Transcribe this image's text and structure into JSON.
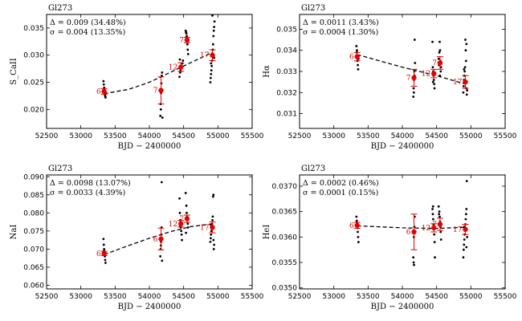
{
  "chart_data": [
    {
      "type": "scatter",
      "title": "Gl273",
      "ylabel": "S_CaII",
      "xlabel": "BJD − 2400000",
      "xlim": [
        52500,
        55500
      ],
      "ylim": [
        0.0165,
        0.0375
      ],
      "xticks": [
        52500,
        53000,
        53500,
        54000,
        54500,
        55000,
        55500
      ],
      "yticks": [
        0.02,
        0.025,
        0.03,
        0.035
      ],
      "ytick_labels": [
        "0.020",
        "0.025",
        "0.030",
        "0.035"
      ],
      "annotation": [
        "Δ = 0.009 (34.48%)",
        "σ = 0.004 (13.35%)"
      ],
      "raw_points": [
        [
          53330,
          0.0252
        ],
        [
          53335,
          0.0246
        ],
        [
          53340,
          0.024
        ],
        [
          53345,
          0.0232
        ],
        [
          53350,
          0.0228
        ],
        [
          53355,
          0.0225
        ],
        [
          53360,
          0.0222
        ],
        [
          53338,
          0.0236
        ],
        [
          54160,
          0.0188
        ],
        [
          54165,
          0.021
        ],
        [
          54170,
          0.023
        ],
        [
          54175,
          0.0248
        ],
        [
          54180,
          0.0262
        ],
        [
          54185,
          0.0268
        ],
        [
          54190,
          0.0185
        ],
        [
          54168,
          0.02
        ],
        [
          54440,
          0.026
        ],
        [
          54450,
          0.0268
        ],
        [
          54455,
          0.0272
        ],
        [
          54460,
          0.0276
        ],
        [
          54470,
          0.028
        ],
        [
          54480,
          0.0285
        ],
        [
          54490,
          0.029
        ],
        [
          54445,
          0.0292
        ],
        [
          54530,
          0.0345
        ],
        [
          54540,
          0.034
        ],
        [
          54545,
          0.0335
        ],
        [
          54550,
          0.0328
        ],
        [
          54555,
          0.032
        ],
        [
          54560,
          0.031
        ],
        [
          54565,
          0.0302
        ],
        [
          54535,
          0.0342
        ],
        [
          54548,
          0.0332
        ],
        [
          54558,
          0.0325
        ],
        [
          54890,
          0.025
        ],
        [
          54895,
          0.0258
        ],
        [
          54900,
          0.0265
        ],
        [
          54905,
          0.0272
        ],
        [
          54910,
          0.028
        ],
        [
          54915,
          0.029
        ],
        [
          54920,
          0.03
        ],
        [
          54925,
          0.031
        ],
        [
          54930,
          0.032
        ],
        [
          54935,
          0.0335
        ],
        [
          54940,
          0.0345
        ],
        [
          54945,
          0.0352
        ],
        [
          54950,
          0.0362
        ],
        [
          54920,
          0.0373
        ],
        [
          54900,
          0.0285
        ],
        [
          54945,
          0.0295
        ]
      ],
      "means": [
        {
          "x": 53340,
          "y": 0.0233,
          "err": 0.0005,
          "n": "6"
        },
        {
          "x": 54170,
          "y": 0.0235,
          "err": 0.0025,
          "n": "7"
        },
        {
          "x": 54460,
          "y": 0.0278,
          "err": 0.0008,
          "n": "12"
        },
        {
          "x": 54550,
          "y": 0.0328,
          "err": 0.0005,
          "n": "7"
        },
        {
          "x": 54920,
          "y": 0.03,
          "err": 0.001,
          "n": "17"
        }
      ],
      "fit": [
        [
          53340,
          0.0229
        ],
        [
          53700,
          0.0237
        ],
        [
          54000,
          0.025
        ],
        [
          54300,
          0.0268
        ],
        [
          54600,
          0.0286
        ],
        [
          54920,
          0.0305
        ]
      ]
    },
    {
      "type": "scatter",
      "title": "Gl273",
      "ylabel": "Hα",
      "xlabel": "BJD − 2400000",
      "xlim": [
        52500,
        55500
      ],
      "ylim": [
        0.0303,
        0.0357
      ],
      "xticks": [
        52500,
        53000,
        53500,
        54000,
        54500,
        55000,
        55500
      ],
      "yticks": [
        0.031,
        0.032,
        0.033,
        0.034,
        0.035
      ],
      "ytick_labels": [
        "0.031",
        "0.032",
        "0.033",
        "0.034",
        "0.035"
      ],
      "annotation": [
        "Δ = 0.0011 (3.43%)",
        "σ = 0.0004 (1.30%)"
      ],
      "raw_points": [
        [
          53330,
          0.0342
        ],
        [
          53335,
          0.0339
        ],
        [
          53340,
          0.0337
        ],
        [
          53345,
          0.0335
        ],
        [
          53350,
          0.0333
        ],
        [
          53355,
          0.0331
        ],
        [
          53360,
          0.0336
        ],
        [
          53338,
          0.034
        ],
        [
          54160,
          0.0318
        ],
        [
          54165,
          0.0322
        ],
        [
          54170,
          0.0326
        ],
        [
          54175,
          0.033
        ],
        [
          54180,
          0.0345
        ],
        [
          54185,
          0.0334
        ],
        [
          54168,
          0.032
        ],
        [
          54178,
          0.0328
        ],
        [
          54440,
          0.0344
        ],
        [
          54445,
          0.0332
        ],
        [
          54450,
          0.033
        ],
        [
          54455,
          0.0328
        ],
        [
          54460,
          0.0326
        ],
        [
          54465,
          0.0324
        ],
        [
          54470,
          0.0322
        ],
        [
          54475,
          0.0329
        ],
        [
          54448,
          0.0325
        ],
        [
          54530,
          0.0336
        ],
        [
          54540,
          0.0339
        ],
        [
          54545,
          0.0344
        ],
        [
          54550,
          0.034
        ],
        [
          54555,
          0.0335
        ],
        [
          54560,
          0.033
        ],
        [
          54565,
          0.0332
        ],
        [
          54535,
          0.0333
        ],
        [
          54548,
          0.0328
        ],
        [
          54890,
          0.032
        ],
        [
          54895,
          0.0323
        ],
        [
          54900,
          0.0326
        ],
        [
          54905,
          0.0328
        ],
        [
          54910,
          0.033
        ],
        [
          54915,
          0.0332
        ],
        [
          54920,
          0.0345
        ],
        [
          54925,
          0.034
        ],
        [
          54930,
          0.0335
        ],
        [
          54935,
          0.0322
        ],
        [
          54940,
          0.0319
        ],
        [
          54945,
          0.0321
        ],
        [
          54900,
          0.0331
        ],
        [
          54935,
          0.0343
        ]
      ],
      "means": [
        {
          "x": 53340,
          "y": 0.0337,
          "err": 0.0002,
          "n": "6"
        },
        {
          "x": 54170,
          "y": 0.0327,
          "err": 0.0004,
          "n": "7"
        },
        {
          "x": 54460,
          "y": 0.0329,
          "err": 0.0002,
          "n": "12"
        },
        {
          "x": 54550,
          "y": 0.0334,
          "err": 0.0003,
          "n": "7"
        },
        {
          "x": 54920,
          "y": 0.0325,
          "err": 0.0003,
          "n": "17"
        }
      ],
      "fit": [
        [
          53340,
          0.0338
        ],
        [
          54000,
          0.0332
        ],
        [
          54500,
          0.0328
        ],
        [
          54920,
          0.0324
        ]
      ]
    },
    {
      "type": "scatter",
      "title": "Gl273",
      "ylabel": "NaI",
      "xlabel": "BJD − 2400000",
      "xlim": [
        52500,
        55500
      ],
      "ylim": [
        0.059,
        0.0905
      ],
      "xticks": [
        52500,
        53000,
        53500,
        54000,
        54500,
        55000,
        55500
      ],
      "yticks": [
        0.06,
        0.065,
        0.07,
        0.075,
        0.08,
        0.085,
        0.09
      ],
      "ytick_labels": [
        "0.060",
        "0.065",
        "0.070",
        "0.075",
        "0.080",
        "0.085",
        "0.090"
      ],
      "annotation": [
        "Δ = 0.0098 (13.07%)",
        "σ = 0.0033 (4.39%)"
      ],
      "raw_points": [
        [
          53330,
          0.0728
        ],
        [
          53335,
          0.0712
        ],
        [
          53340,
          0.07
        ],
        [
          53345,
          0.069
        ],
        [
          53350,
          0.068
        ],
        [
          53355,
          0.067
        ],
        [
          53360,
          0.0662
        ],
        [
          53338,
          0.0695
        ],
        [
          54160,
          0.068
        ],
        [
          54165,
          0.07
        ],
        [
          54170,
          0.072
        ],
        [
          54175,
          0.074
        ],
        [
          54180,
          0.0885
        ],
        [
          54185,
          0.0668
        ],
        [
          54168,
          0.071
        ],
        [
          54178,
          0.076
        ],
        [
          54440,
          0.084
        ],
        [
          54445,
          0.08
        ],
        [
          54450,
          0.078
        ],
        [
          54455,
          0.077
        ],
        [
          54460,
          0.076
        ],
        [
          54465,
          0.075
        ],
        [
          54470,
          0.074
        ],
        [
          54475,
          0.0725
        ],
        [
          54448,
          0.0765
        ],
        [
          54530,
          0.0855
        ],
        [
          54540,
          0.082
        ],
        [
          54545,
          0.08
        ],
        [
          54550,
          0.079
        ],
        [
          54555,
          0.078
        ],
        [
          54560,
          0.077
        ],
        [
          54565,
          0.076
        ],
        [
          54535,
          0.0745
        ],
        [
          54890,
          0.072
        ],
        [
          54895,
          0.073
        ],
        [
          54900,
          0.074
        ],
        [
          54905,
          0.075
        ],
        [
          54910,
          0.076
        ],
        [
          54915,
          0.077
        ],
        [
          54920,
          0.078
        ],
        [
          54925,
          0.079
        ],
        [
          54930,
          0.0845
        ],
        [
          54935,
          0.085
        ],
        [
          54940,
          0.07
        ],
        [
          54945,
          0.0712
        ],
        [
          54900,
          0.0765
        ],
        [
          54935,
          0.0725
        ]
      ],
      "means": [
        {
          "x": 53340,
          "y": 0.0688,
          "err": 0.0006,
          "n": "6"
        },
        {
          "x": 54170,
          "y": 0.0728,
          "err": 0.003,
          "n": "6"
        },
        {
          "x": 54460,
          "y": 0.077,
          "err": 0.0009,
          "n": "12"
        },
        {
          "x": 54550,
          "y": 0.0784,
          "err": 0.001,
          "n": "7"
        },
        {
          "x": 54920,
          "y": 0.076,
          "err": 0.0015,
          "n": "17"
        }
      ],
      "fit": [
        [
          53340,
          0.0685
        ],
        [
          53700,
          0.071
        ],
        [
          54000,
          0.073
        ],
        [
          54300,
          0.0748
        ],
        [
          54600,
          0.0762
        ],
        [
          54920,
          0.077
        ]
      ]
    },
    {
      "type": "scatter",
      "title": "Gl273",
      "ylabel": "HeI",
      "xlabel": "BJD − 2400000",
      "xlim": [
        52500,
        55500
      ],
      "ylim": [
        0.03498,
        0.03722
      ],
      "xticks": [
        52500,
        53000,
        53500,
        54000,
        54500,
        55000,
        55500
      ],
      "yticks": [
        0.035,
        0.0355,
        0.036,
        0.0365,
        0.037
      ],
      "ytick_labels": [
        "0.0350",
        "0.0355",
        "0.0360",
        "0.0365",
        "0.0370"
      ],
      "annotation": [
        "Δ = 0.0002 (0.46%)",
        "σ = 0.0001 (0.15%)"
      ],
      "raw_points": [
        [
          53330,
          0.0364
        ],
        [
          53335,
          0.03632
        ],
        [
          53340,
          0.03625
        ],
        [
          53345,
          0.03618
        ],
        [
          53350,
          0.0361
        ],
        [
          53355,
          0.036
        ],
        [
          53360,
          0.0359
        ],
        [
          53338,
          0.03628
        ],
        [
          54160,
          0.0356
        ],
        [
          54165,
          0.0355
        ],
        [
          54170,
          0.03545
        ],
        [
          54175,
          0.0362
        ],
        [
          54180,
          0.0364
        ],
        [
          54185,
          0.0361
        ],
        [
          54168,
          0.036
        ],
        [
          54440,
          0.03655
        ],
        [
          54445,
          0.03645
        ],
        [
          54450,
          0.03635
        ],
        [
          54455,
          0.03625
        ],
        [
          54460,
          0.03615
        ],
        [
          54465,
          0.03605
        ],
        [
          54470,
          0.0359
        ],
        [
          54475,
          0.0356
        ],
        [
          54448,
          0.0366
        ],
        [
          54530,
          0.0366
        ],
        [
          54540,
          0.0365
        ],
        [
          54545,
          0.0364
        ],
        [
          54550,
          0.0363
        ],
        [
          54555,
          0.0362
        ],
        [
          54560,
          0.0361
        ],
        [
          54565,
          0.03595
        ],
        [
          54535,
          0.03645
        ],
        [
          54890,
          0.0356
        ],
        [
          54895,
          0.03575
        ],
        [
          54900,
          0.03585
        ],
        [
          54905,
          0.03595
        ],
        [
          54910,
          0.03605
        ],
        [
          54915,
          0.03615
        ],
        [
          54920,
          0.03625
        ],
        [
          54925,
          0.03635
        ],
        [
          54930,
          0.03645
        ],
        [
          54935,
          0.03655
        ],
        [
          54940,
          0.0371
        ],
        [
          54945,
          0.036
        ],
        [
          54900,
          0.0362
        ],
        [
          54935,
          0.0358
        ]
      ],
      "means": [
        {
          "x": 53340,
          "y": 0.03623,
          "err": 6e-05,
          "n": "6"
        },
        {
          "x": 54170,
          "y": 0.0361,
          "err": 0.00035,
          "n": "6"
        },
        {
          "x": 54460,
          "y": 0.03618,
          "err": 8e-05,
          "n": "12"
        },
        {
          "x": 54550,
          "y": 0.03625,
          "err": 0.00012,
          "n": "7"
        },
        {
          "x": 54920,
          "y": 0.03615,
          "err": 0.0001,
          "n": "17"
        }
      ],
      "fit": [
        [
          53340,
          0.03622
        ],
        [
          54000,
          0.03618
        ],
        [
          54500,
          0.03617
        ],
        [
          54920,
          0.03619
        ]
      ]
    }
  ]
}
